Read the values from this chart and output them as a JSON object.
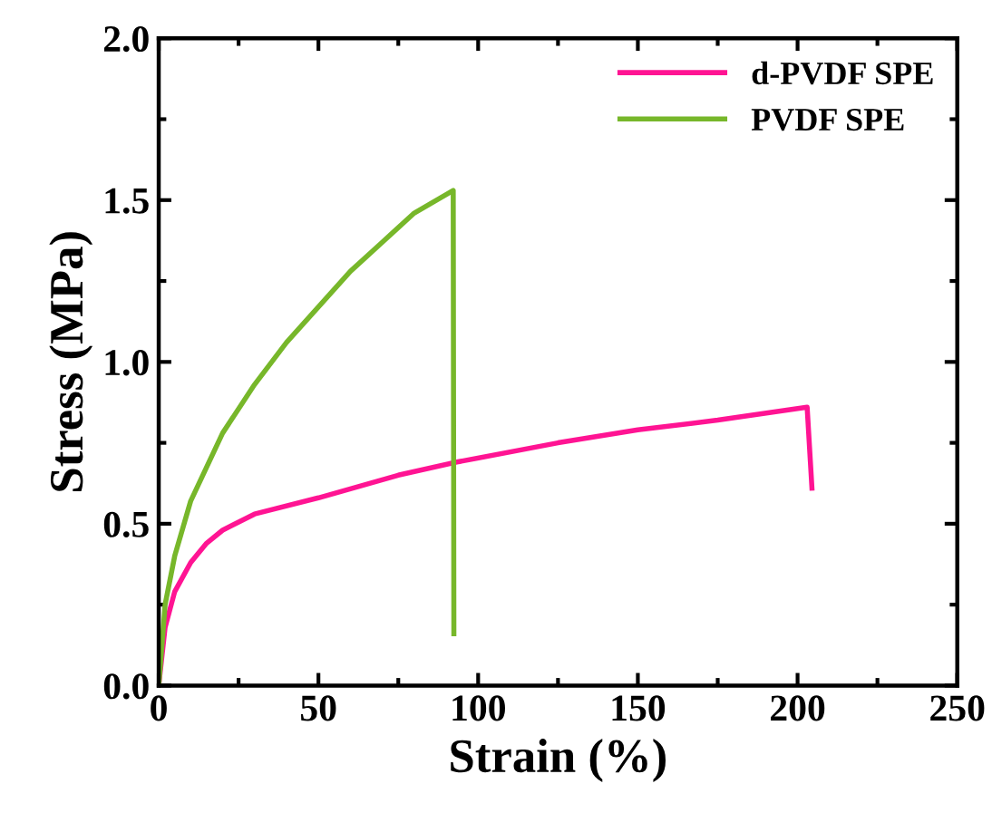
{
  "chart_data": {
    "type": "line",
    "xlabel": "Strain (%)",
    "ylabel": "Stress (MPa)",
    "xlim": [
      0,
      250
    ],
    "xticks": [
      0,
      50,
      100,
      150,
      200,
      250
    ],
    "ylim": [
      0,
      2.0
    ],
    "yticks": [
      {
        "value": 0,
        "label": "0.0"
      },
      0.5,
      {
        "value": 1,
        "label": "1.0"
      },
      1.5,
      {
        "value": 2,
        "label": "2.0"
      }
    ],
    "grid": false,
    "legend": "top right",
    "marker": "none",
    "line_style": "solid",
    "series": [
      {
        "name": "d-PVDF SPE",
        "color": "#ff1493",
        "x": [
          0,
          2,
          5,
          10,
          15,
          20,
          30,
          50,
          75,
          93,
          125,
          150,
          175,
          203,
          204.5
        ],
        "values": [
          0,
          0.18,
          0.29,
          0.38,
          0.44,
          0.48,
          0.53,
          0.58,
          0.65,
          0.69,
          0.75,
          0.79,
          0.82,
          0.86,
          0.61
        ]
      },
      {
        "name": "PVDF SPE",
        "color": "#77b72a",
        "x": [
          0,
          2,
          5,
          10,
          20,
          30,
          40,
          50,
          60,
          70,
          80,
          92.2,
          92.4
        ],
        "values": [
          0,
          0.25,
          0.4,
          0.57,
          0.78,
          0.93,
          1.06,
          1.17,
          1.28,
          1.37,
          1.46,
          1.53,
          0.16
        ]
      }
    ]
  }
}
